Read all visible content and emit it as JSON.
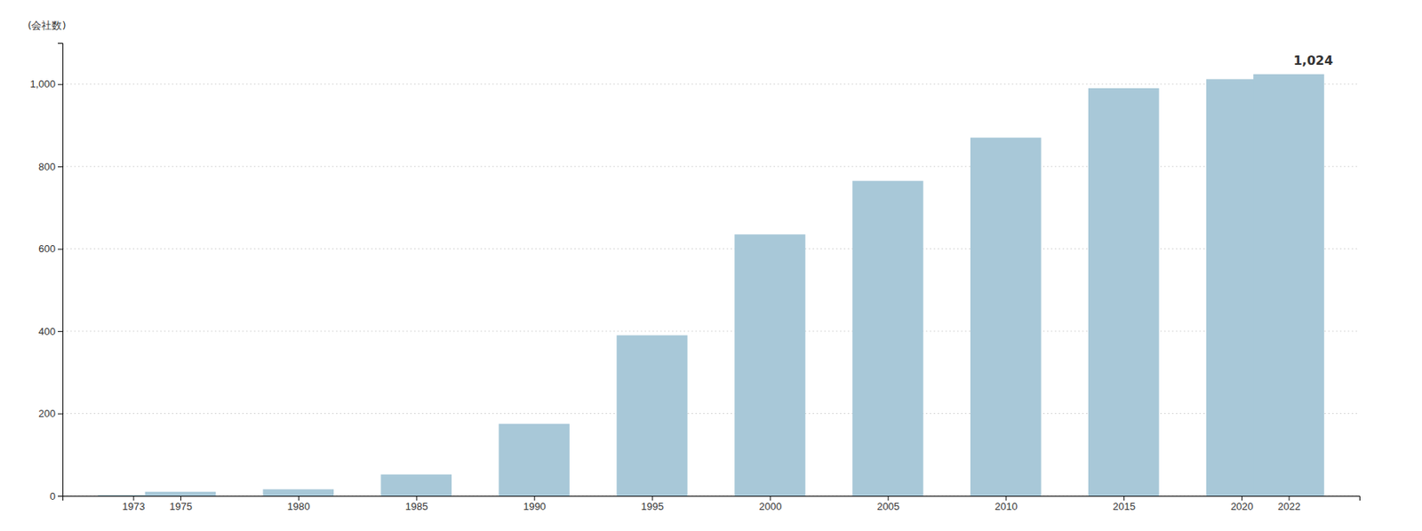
{
  "chart_data": {
    "type": "bar",
    "x": [
      1973,
      1975,
      1980,
      1985,
      1990,
      1995,
      2000,
      2005,
      2010,
      2015,
      2020,
      2022
    ],
    "values": [
      2,
      10,
      16,
      52,
      175,
      390,
      635,
      765,
      870,
      990,
      1012,
      1024
    ],
    "color": "#a8c8d8",
    "xlim": [
      1970,
      2025
    ],
    "xticks": [
      1973,
      1975,
      1980,
      1985,
      1990,
      1995,
      2000,
      2005,
      2010,
      2015,
      2020,
      2022
    ],
    "ylabel": "(会社数)",
    "ylim": [
      0,
      1100
    ],
    "yticks": [
      0,
      200,
      400,
      600,
      800,
      {
        "value": 1000,
        "label": "1,000"
      }
    ],
    "grid": true,
    "annotations": [
      {
        "text": "1,024",
        "x": 2022,
        "y": 1024
      }
    ]
  }
}
